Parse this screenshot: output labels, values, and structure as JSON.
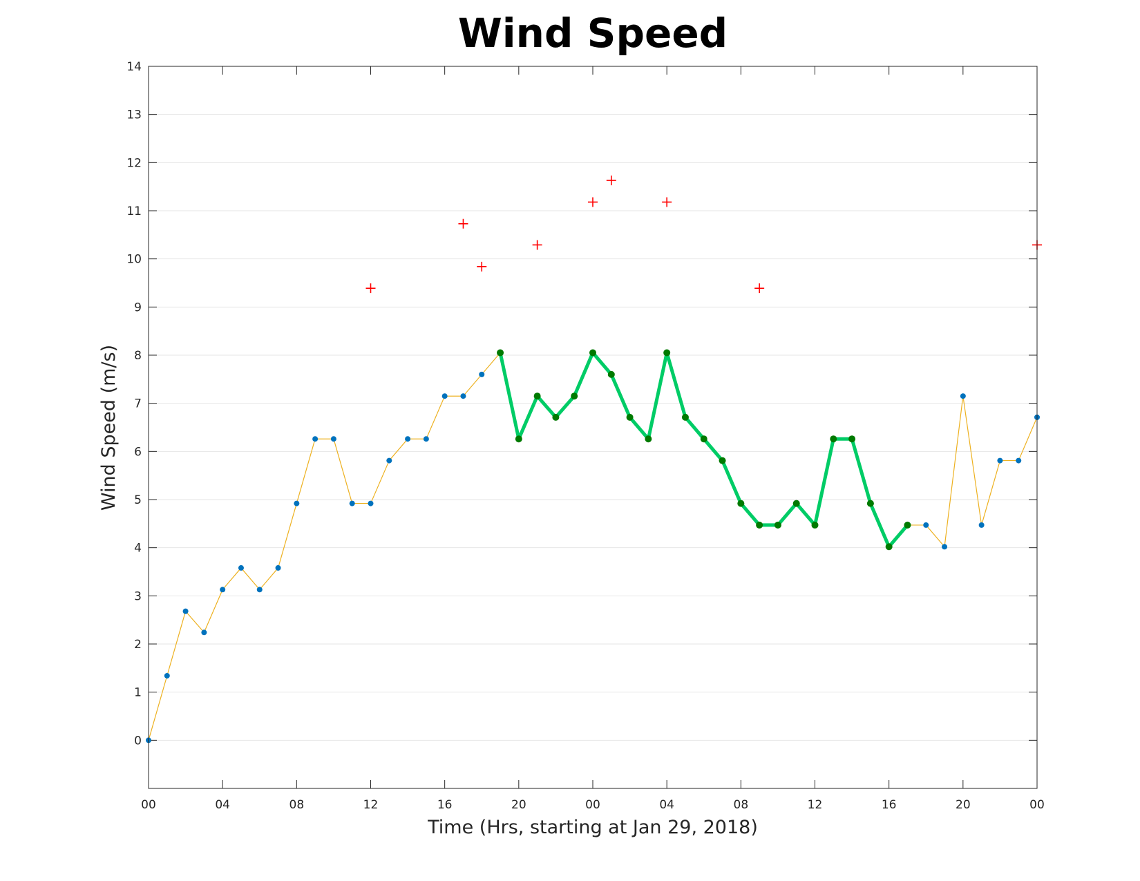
{
  "chart_data": {
    "type": "line",
    "title": "Wind Speed",
    "xlabel": "Time (Hrs, starting at Jan 29, 2018)",
    "ylabel": "Wind Speed (m/s)",
    "xlim": [
      0,
      48
    ],
    "ylim": [
      -1,
      14
    ],
    "x_ticks": [
      0,
      4,
      8,
      12,
      16,
      20,
      24,
      28,
      32,
      36,
      40,
      44,
      48
    ],
    "x_tick_labels": [
      "00",
      "04",
      "08",
      "12",
      "16",
      "20",
      "00",
      "04",
      "08",
      "12",
      "16",
      "20",
      "00"
    ],
    "y_ticks": [
      0,
      1,
      2,
      3,
      4,
      5,
      6,
      7,
      8,
      9,
      10,
      11,
      12,
      13,
      14
    ],
    "y_tick_labels": [
      "0",
      "1",
      "2",
      "3",
      "4",
      "5",
      "6",
      "7",
      "8",
      "9",
      "10",
      "11",
      "12",
      "13",
      "14"
    ],
    "grid": true,
    "series": [
      {
        "style": "thin-line-with-dots",
        "line_color": "#EDB120",
        "marker_color": "#0072BD",
        "x": [
          0,
          1,
          2,
          3,
          4,
          5,
          6,
          7,
          8,
          9,
          10,
          11,
          12,
          13,
          14,
          15,
          16,
          17,
          18,
          19,
          20,
          21,
          22,
          23,
          24,
          25,
          26,
          27,
          28,
          29,
          30,
          31,
          32,
          33,
          34,
          35,
          36,
          37,
          38,
          39,
          40,
          41,
          42,
          43,
          44,
          45,
          46,
          47,
          48
        ],
        "values": [
          0,
          1.34,
          2.68,
          2.24,
          3.13,
          3.58,
          3.13,
          3.58,
          4.92,
          6.26,
          6.26,
          4.92,
          4.92,
          5.81,
          6.26,
          6.26,
          7.15,
          7.15,
          7.6,
          8.05,
          6.26,
          7.15,
          6.71,
          7.15,
          8.05,
          7.6,
          6.71,
          6.26,
          8.05,
          6.71,
          6.26,
          5.81,
          4.92,
          4.47,
          4.47,
          4.92,
          4.47,
          6.26,
          6.26,
          4.92,
          4.02,
          4.47,
          4.47,
          4.02,
          7.15,
          4.47,
          5.81,
          5.81,
          6.71
        ]
      },
      {
        "style": "thick-line-with-dots",
        "line_color": "#00CC66",
        "marker_color": "#007A00",
        "x": [
          19,
          20,
          21,
          22,
          23,
          24,
          25,
          26,
          27,
          28,
          29,
          30,
          31,
          32,
          33,
          34,
          35,
          36,
          37,
          38,
          39,
          40,
          41
        ],
        "values": [
          8.05,
          6.26,
          7.15,
          6.71,
          7.15,
          8.05,
          7.6,
          6.71,
          6.26,
          8.05,
          6.71,
          6.26,
          5.81,
          4.92,
          4.47,
          4.47,
          4.92,
          4.47,
          6.26,
          6.26,
          4.92,
          4.02,
          4.47
        ]
      },
      {
        "style": "plus-markers",
        "marker_color": "#FF0000",
        "x": [
          12,
          17,
          18,
          21,
          24,
          25,
          28,
          33,
          48
        ],
        "values": [
          9.39,
          10.73,
          9.84,
          10.29,
          11.18,
          11.63,
          11.18,
          9.39,
          10.29
        ]
      }
    ]
  }
}
